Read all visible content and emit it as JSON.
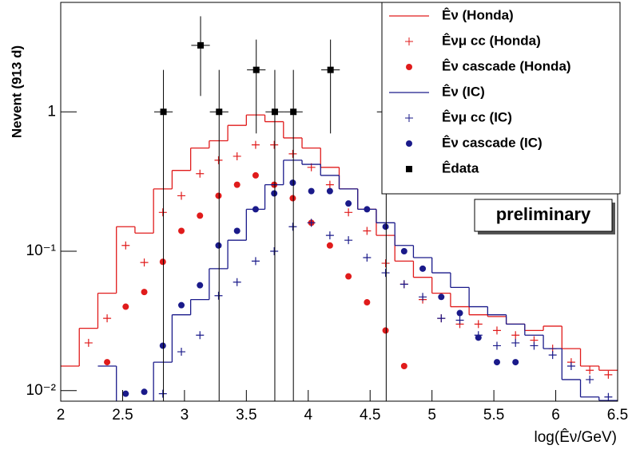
{
  "chart_data": {
    "type": "histogram",
    "y_label": "Nevent (913 d)",
    "x_label": "log(Êν/GeV)",
    "annotation": "preliminary",
    "log_y": true,
    "bins": [
      2,
      2.15,
      2.3,
      2.45,
      2.6,
      2.75,
      2.9,
      3.05,
      3.2,
      3.35,
      3.5,
      3.65,
      3.8,
      3.95,
      4.1,
      4.25,
      4.4,
      4.55,
      4.7,
      4.85,
      5,
      5.15,
      5.3,
      5.45,
      5.6,
      5.75,
      5.9,
      6.05,
      6.2,
      6.35,
      6.5
    ],
    "xlim": [
      2,
      6.5
    ],
    "xticks": [
      2,
      2.5,
      3,
      3.5,
      4,
      4.5,
      5,
      5.5,
      6,
      6.5
    ],
    "ylim": [
      0.0084,
      6.1
    ],
    "yticks": [
      {
        "value": 0.01,
        "label": "10⁻²"
      },
      {
        "value": 0.1,
        "label": "10⁻¹"
      },
      1
    ],
    "series": [
      {
        "name": "Êν (Honda)",
        "style": "step",
        "color": "#e01b1b",
        "values": [
          0.015,
          0.028,
          0.05,
          0.15,
          0.135,
          0.28,
          0.38,
          0.55,
          0.62,
          0.8,
          0.95,
          0.85,
          0.65,
          0.55,
          0.4,
          0.28,
          0.2,
          0.13,
          0.085,
          0.065,
          0.05,
          0.04,
          0.035,
          0.034,
          0.03,
          0.027,
          0.029,
          0.02,
          0.015,
          0.014
        ]
      },
      {
        "name": "Êνμ cc (Honda)",
        "style": "plus",
        "color": "#e01b1b",
        "values": [
          null,
          0.022,
          0.033,
          0.11,
          0.083,
          0.19,
          0.25,
          0.36,
          0.45,
          0.48,
          0.58,
          0.58,
          0.5,
          0.4,
          0.3,
          0.19,
          0.14,
          0.082,
          0.058,
          0.045,
          0.033,
          0.03,
          0.03,
          0.027,
          0.025,
          0.023,
          0.02,
          0.016,
          0.014,
          0.013
        ]
      },
      {
        "name": "Êν cascade (Honda)",
        "style": "dot",
        "color": "#e01b1b",
        "values": [
          null,
          null,
          0.016,
          0.04,
          0.051,
          0.084,
          0.14,
          0.18,
          0.25,
          0.3,
          0.35,
          0.3,
          0.24,
          0.16,
          0.11,
          0.066,
          0.043,
          0.027,
          0.015,
          null,
          null,
          null,
          null,
          null,
          null,
          null,
          null,
          null,
          null,
          null
        ]
      },
      {
        "name": "Êν (IC)",
        "style": "step",
        "color": "#1a1a8a",
        "values": [
          null,
          null,
          0.015,
          0.008,
          0.008,
          0.016,
          0.035,
          0.045,
          0.075,
          0.12,
          0.2,
          0.3,
          0.45,
          0.42,
          0.35,
          0.28,
          0.2,
          0.16,
          0.11,
          0.09,
          0.07,
          0.055,
          0.04,
          0.035,
          0.03,
          0.025,
          0.02,
          0.012,
          0.009,
          0.0085
        ]
      },
      {
        "name": "Êνμ cc (IC)",
        "style": "plus",
        "color": "#1a1a8a",
        "values": [
          null,
          null,
          null,
          null,
          null,
          0.0095,
          0.019,
          0.025,
          0.048,
          0.06,
          0.085,
          0.1,
          0.15,
          0.16,
          0.13,
          0.12,
          0.09,
          0.07,
          0.058,
          0.047,
          0.033,
          0.032,
          0.025,
          0.021,
          0.022,
          0.021,
          0.018,
          0.015,
          0.012,
          0.009
        ]
      },
      {
        "name": "Êν cascade (IC)",
        "style": "dot",
        "color": "#1a1a8a",
        "values": [
          null,
          null,
          null,
          0.0095,
          0.0098,
          0.021,
          0.041,
          0.057,
          0.11,
          0.14,
          0.2,
          0.26,
          0.31,
          0.27,
          0.27,
          0.22,
          0.2,
          0.15,
          0.1,
          0.075,
          0.047,
          0.036,
          0.024,
          0.016,
          0.016,
          null,
          null,
          null,
          null,
          null
        ]
      },
      {
        "name": "Êdata",
        "style": "square",
        "color": "#000000",
        "x": [
          2.83,
          3.13,
          3.28,
          3.58,
          3.73,
          3.88,
          4.18,
          4.63
        ],
        "values": [
          1,
          3,
          1,
          2,
          1,
          1,
          2,
          1
        ],
        "yerr_low": [
          1,
          1.7,
          1,
          1.3,
          1,
          1,
          1.3,
          1
        ],
        "yerr_high": [
          1,
          1.85,
          1,
          1.3,
          1,
          1,
          1.3,
          1
        ],
        "xerr": 0.075
      }
    ]
  }
}
